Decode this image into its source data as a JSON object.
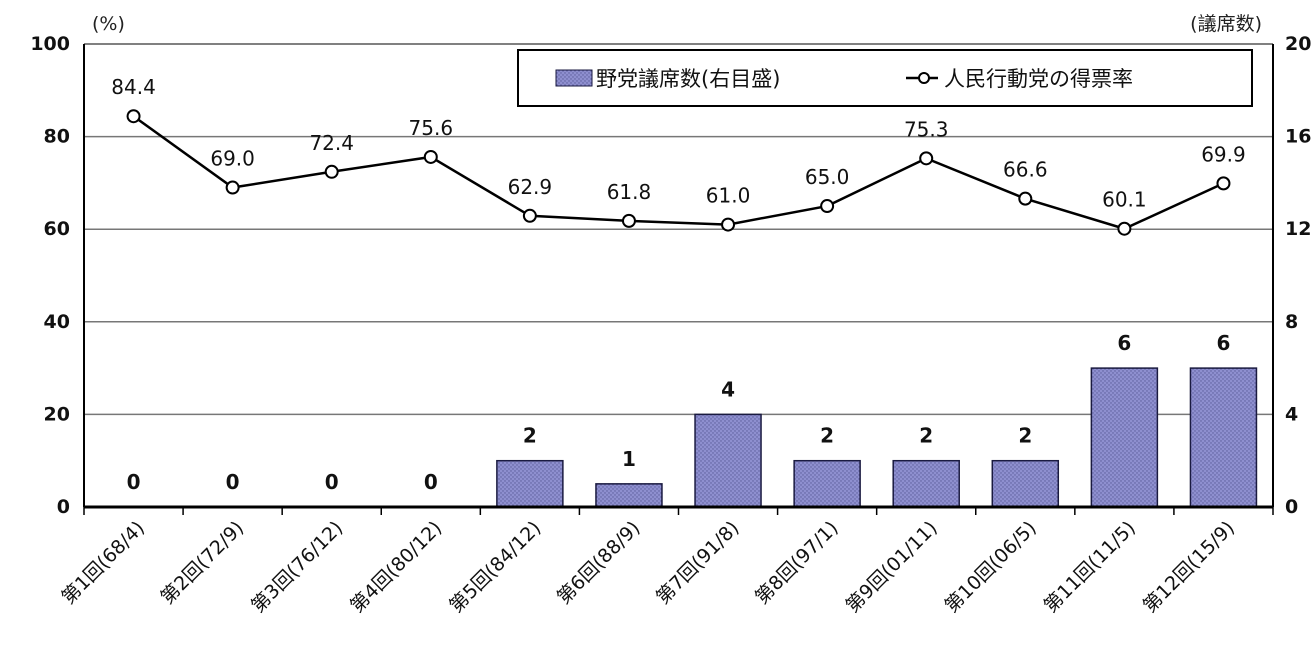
{
  "chart_data": {
    "type": "bar",
    "categories": [
      "第1回(68/4)",
      "第2回(72/9)",
      "第3回(76/12)",
      "第4回(80/12)",
      "第5回(84/12)",
      "第6回(88/9)",
      "第7回(91/8)",
      "第8回(97/1)",
      "第9回(01/11)",
      "第10回(06/5)",
      "第11回(11/5)",
      "第12回(15/9)"
    ],
    "series": [
      {
        "name": "野党議席数(右目盛)",
        "type": "bar",
        "axis": "right",
        "values": [
          0,
          0,
          0,
          0,
          2,
          1,
          4,
          2,
          2,
          2,
          6,
          6
        ],
        "color": "#8e8fcf"
      },
      {
        "name": "人民行動党の得票率",
        "type": "line",
        "axis": "left",
        "values": [
          84.4,
          69.0,
          72.4,
          75.6,
          62.9,
          61.8,
          61.0,
          65.0,
          75.3,
          66.6,
          60.1,
          69.9
        ],
        "color": "#000000"
      }
    ],
    "left_unit": "(%)",
    "right_unit": "(議席数)",
    "ylim_left": [
      0,
      100
    ],
    "ylim_right": [
      0,
      20
    ],
    "left_ticks": [
      "0",
      "20",
      "40",
      "60",
      "80",
      "100"
    ],
    "right_ticks": [
      "0",
      "4",
      "8",
      "12",
      "16",
      "20"
    ],
    "grid": true,
    "legend": "top-right"
  }
}
